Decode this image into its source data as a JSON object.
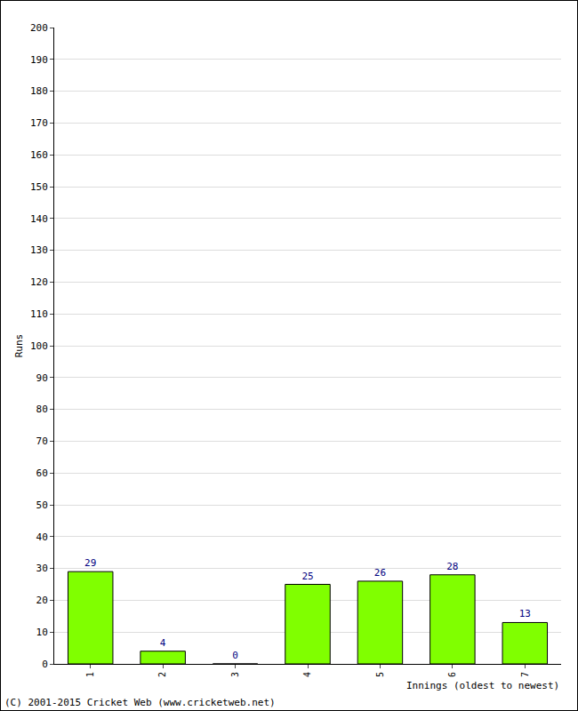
{
  "chart_data": {
    "type": "bar",
    "categories": [
      "1",
      "2",
      "3",
      "4",
      "5",
      "6",
      "7"
    ],
    "values": [
      29,
      4,
      0,
      25,
      26,
      28,
      13
    ],
    "color": "#80ff00",
    "ylim": [
      0,
      200
    ],
    "yticks": [
      0,
      10,
      20,
      30,
      40,
      50,
      60,
      70,
      80,
      90,
      100,
      110,
      120,
      130,
      140,
      150,
      160,
      170,
      180,
      190,
      200
    ],
    "grid": true,
    "data_labels": true,
    "ylabel": "Runs",
    "xlabel": "Innings (oldest to newest)",
    "annotations": [
      "(C) 2001-2015 Cricket Web (www.cricketweb.net)"
    ]
  }
}
